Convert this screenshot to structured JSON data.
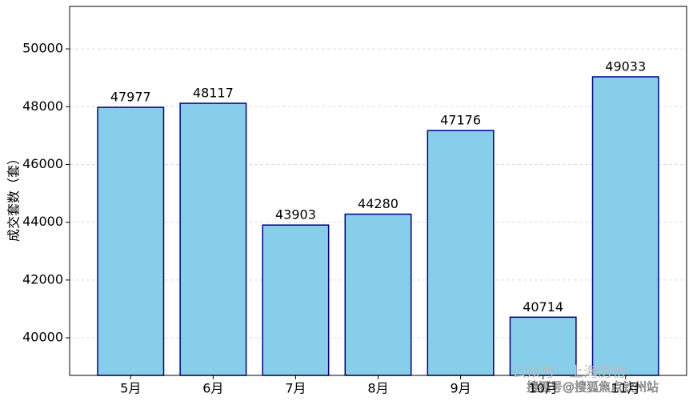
{
  "chart_data": {
    "type": "bar",
    "y_label": "成交套数（套）",
    "categories": [
      "5月",
      "6月",
      "7月",
      "8月",
      "9月",
      "10月",
      "11月"
    ],
    "values": [
      47977,
      48117,
      43903,
      44280,
      47176,
      40714,
      49033
    ],
    "color": "#87ceeb",
    "edge_color": "#00008b",
    "ylim": [
      38700,
      51470
    ],
    "yticks": [
      40000,
      42000,
      44000,
      46000,
      48000,
      50000
    ],
    "grid": true,
    "watermarks": [
      "公众号 · 上海房协",
      "搜狐号@搜狐焦点钦州站"
    ]
  }
}
